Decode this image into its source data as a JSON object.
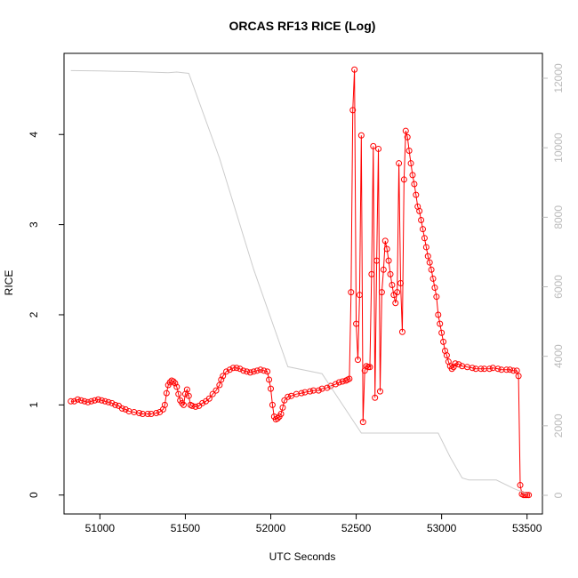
{
  "chart_data": {
    "type": "line",
    "title": "ORCAS RF13 RICE (Log)",
    "x_label": "UTC Seconds",
    "y_label": "RICE",
    "xlim": [
      50790,
      53590
    ],
    "ylim": [
      -0.21,
      4.9
    ],
    "y2lim": [
      -537,
      12716
    ],
    "xticks": [
      51000,
      51500,
      52000,
      52500,
      53000,
      53500
    ],
    "yticks": [
      0,
      1,
      2,
      3,
      4
    ],
    "y2ticks": [
      0,
      2000,
      4000,
      6000,
      8000,
      10000,
      12000
    ],
    "series": [
      {
        "color": "#ff0000",
        "markers": true,
        "x": [
          50830,
          50850,
          50870,
          50890,
          50910,
          50930,
          50950,
          50970,
          50990,
          51010,
          51030,
          51050,
          51070,
          51090,
          51110,
          51130,
          51150,
          51170,
          51200,
          51230,
          51250,
          51280,
          51300,
          51330,
          51350,
          51370,
          51380,
          51390,
          51400,
          51410,
          51420,
          51430,
          51440,
          51450,
          51460,
          51470,
          51480,
          51490,
          51500,
          51510,
          51520,
          51530,
          51540,
          51560,
          51580,
          51600,
          51620,
          51640,
          51660,
          51680,
          51700,
          51710,
          51720,
          51740,
          51760,
          51780,
          51800,
          51820,
          51840,
          51860,
          51880,
          51900,
          51920,
          51940,
          51960,
          51980,
          51990,
          52000,
          52010,
          52020,
          52030,
          52040,
          52050,
          52060,
          52070,
          52080,
          52100,
          52120,
          52150,
          52180,
          52200,
          52230,
          52250,
          52280,
          52300,
          52330,
          52350,
          52380,
          52400,
          52420,
          52440,
          52450,
          52460,
          52470,
          52480,
          52490,
          52500,
          52510,
          52520,
          52530,
          52540,
          52550,
          52560,
          52570,
          52580,
          52590,
          52600,
          52610,
          52620,
          52630,
          52640,
          52650,
          52660,
          52670,
          52680,
          52690,
          52700,
          52710,
          52720,
          52730,
          52740,
          52750,
          52760,
          52770,
          52780,
          52790,
          52800,
          52810,
          52820,
          52830,
          52840,
          52850,
          52860,
          52870,
          52880,
          52890,
          52900,
          52910,
          52920,
          52930,
          52940,
          52950,
          52960,
          52970,
          52980,
          52990,
          53000,
          53010,
          53020,
          53030,
          53040,
          53050,
          53060,
          53070,
          53080,
          53100,
          53120,
          53150,
          53180,
          53200,
          53230,
          53250,
          53280,
          53300,
          53330,
          53350,
          53380,
          53400,
          53420,
          53440,
          53450,
          53460,
          53470,
          53480,
          53490,
          53500,
          53510
        ],
        "values": [
          1.04,
          1.04,
          1.06,
          1.05,
          1.04,
          1.03,
          1.04,
          1.05,
          1.06,
          1.05,
          1.04,
          1.03,
          1.02,
          1.0,
          0.99,
          0.96,
          0.95,
          0.93,
          0.92,
          0.91,
          0.9,
          0.9,
          0.9,
          0.91,
          0.92,
          0.95,
          1.0,
          1.13,
          1.22,
          1.25,
          1.27,
          1.26,
          1.24,
          1.2,
          1.12,
          1.05,
          1.02,
          1.0,
          1.12,
          1.17,
          1.1,
          1.0,
          0.99,
          0.98,
          0.99,
          1.02,
          1.04,
          1.07,
          1.12,
          1.16,
          1.22,
          1.28,
          1.32,
          1.37,
          1.39,
          1.41,
          1.41,
          1.4,
          1.38,
          1.37,
          1.36,
          1.37,
          1.38,
          1.39,
          1.38,
          1.37,
          1.28,
          1.18,
          1.0,
          0.87,
          0.84,
          0.85,
          0.87,
          0.9,
          0.97,
          1.05,
          1.09,
          1.1,
          1.12,
          1.13,
          1.14,
          1.15,
          1.16,
          1.16,
          1.18,
          1.19,
          1.21,
          1.23,
          1.25,
          1.26,
          1.27,
          1.28,
          1.29,
          2.25,
          4.27,
          4.72,
          1.9,
          1.5,
          2.22,
          3.99,
          0.81,
          1.38,
          1.43,
          1.42,
          1.42,
          2.45,
          3.87,
          1.08,
          2.6,
          3.84,
          1.15,
          2.25,
          2.5,
          2.82,
          2.73,
          2.6,
          2.45,
          2.33,
          2.22,
          2.13,
          2.25,
          3.68,
          2.35,
          1.81,
          3.5,
          4.04,
          3.97,
          3.82,
          3.68,
          3.55,
          3.45,
          3.33,
          3.2,
          3.15,
          3.05,
          2.95,
          2.85,
          2.75,
          2.65,
          2.58,
          2.5,
          2.4,
          2.3,
          2.2,
          2.0,
          1.9,
          1.8,
          1.7,
          1.6,
          1.55,
          1.48,
          1.43,
          1.4,
          1.42,
          1.46,
          1.45,
          1.43,
          1.42,
          1.41,
          1.4,
          1.4,
          1.4,
          1.4,
          1.41,
          1.4,
          1.39,
          1.39,
          1.39,
          1.38,
          1.38,
          1.32,
          0.11,
          0.01,
          0.0,
          0.0,
          0.0,
          0.0
        ]
      },
      {
        "color": "#cccccc",
        "markers": false,
        "axis": "y2",
        "x": [
          50830,
          51000,
          51200,
          51400,
          51450,
          51520,
          51700,
          51900,
          52100,
          52300,
          52530,
          52700,
          52980,
          53050,
          53120,
          53160,
          53320,
          53420,
          53500
        ],
        "values": [
          12220,
          12210,
          12190,
          12160,
          12180,
          12140,
          9700,
          6500,
          3700,
          3500,
          1790,
          1790,
          1790,
          1100,
          500,
          440,
          440,
          200,
          40
        ]
      }
    ]
  }
}
